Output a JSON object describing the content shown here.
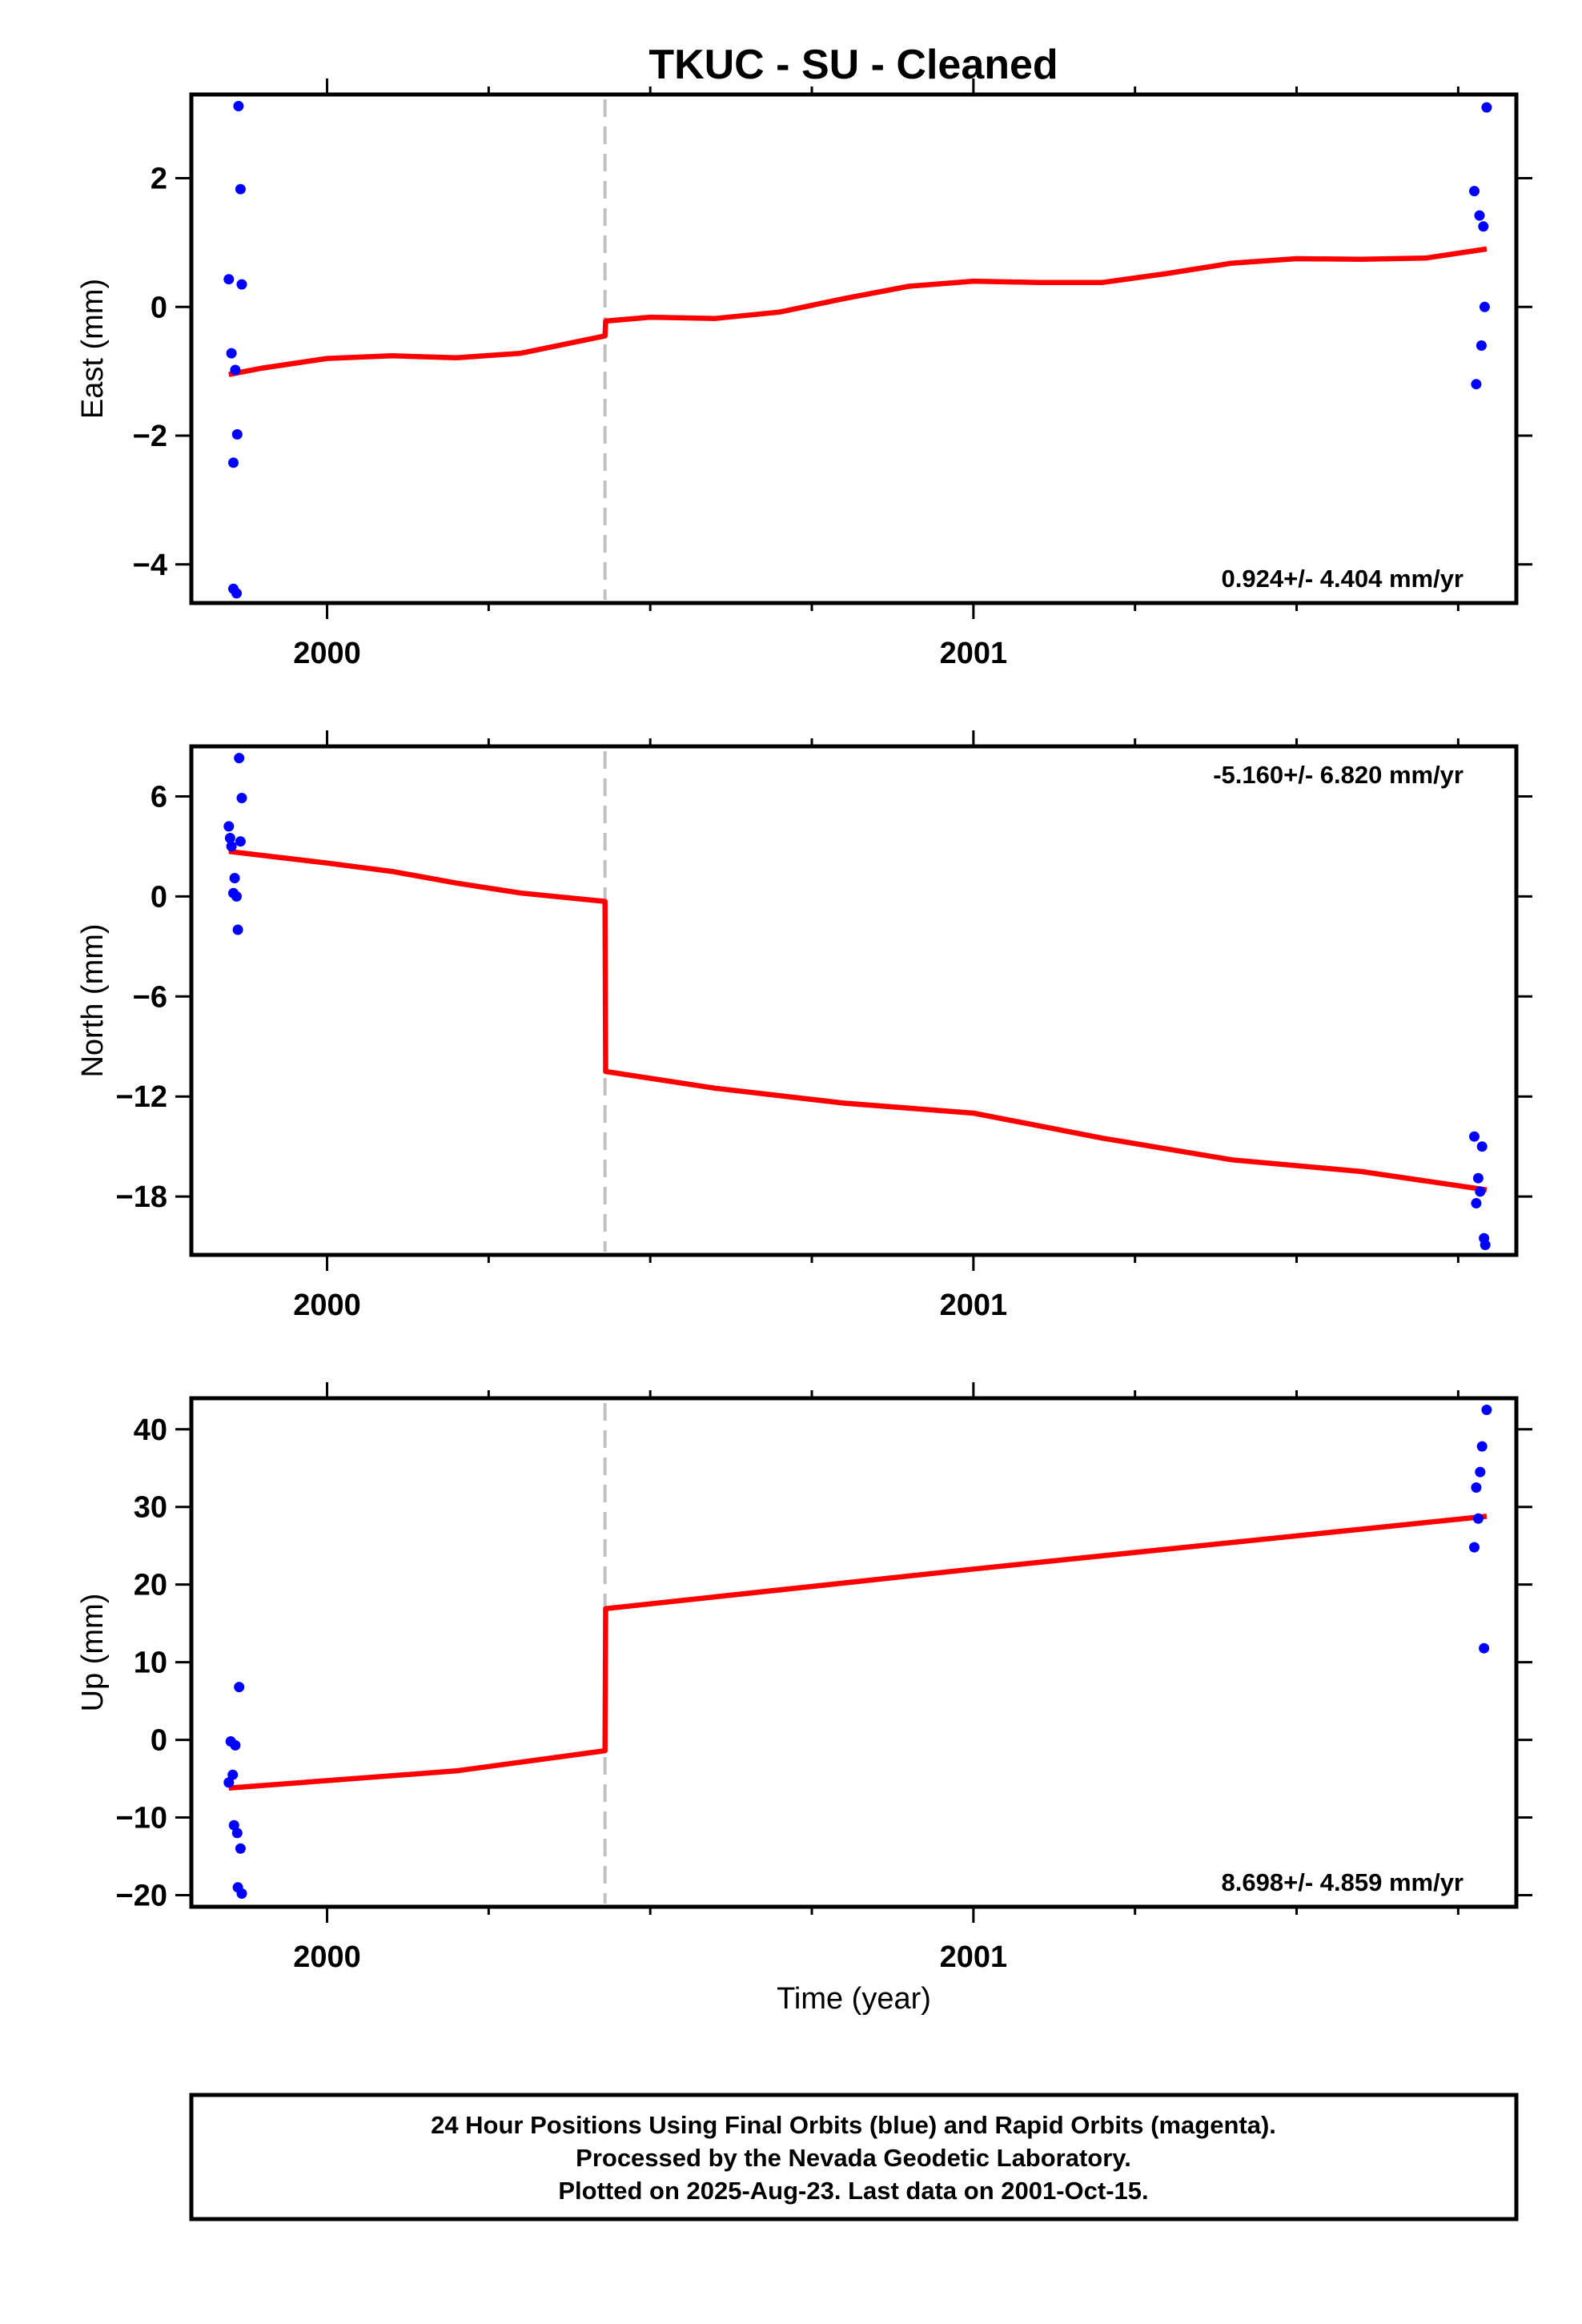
{
  "title": "TKUC  - SU - Cleaned",
  "footer": {
    "lines": [
      "24 Hour Positions Using Final Orbits (blue) and Rapid Orbits (magenta).",
      "Processed by the Nevada Geodetic Laboratory.",
      "Plotted on 2025-Aug-23. Last data on 2001-Oct-15."
    ]
  },
  "colors": {
    "points": "#0000ff",
    "model": "#ff0000",
    "step_line": "#c0c0c0"
  },
  "chart_data": [
    {
      "type": "scatter",
      "panel": "east",
      "ylabel": "East (mm)",
      "xlabel": "",
      "xlim": [
        1999.79,
        2001.84
      ],
      "ylim": [
        -4.6,
        3.3
      ],
      "xticks": [
        2000,
        2001
      ],
      "yticks": [
        -4,
        -2,
        0,
        2
      ],
      "yticklabels": [
        "−4",
        "−2",
        "0",
        "2"
      ],
      "step_epoch": 2000.43,
      "rate_label": "0.924+/- 4.404 mm/yr",
      "rate_position": "bottom-right",
      "points": {
        "x": [
          1999.848,
          1999.852,
          1999.855,
          1999.855,
          1999.858,
          1999.86,
          1999.861,
          1999.863,
          1999.866,
          1999.868,
          2001.775,
          2001.778,
          2001.783,
          2001.786,
          2001.789,
          2001.791,
          2001.794
        ],
        "y": [
          0.43,
          -0.72,
          -2.42,
          -4.38,
          -0.98,
          -4.45,
          -1.98,
          3.12,
          1.83,
          0.35,
          1.8,
          -1.2,
          1.42,
          -0.6,
          1.25,
          0.0,
          3.1
        ]
      },
      "model": {
        "x": [
          1999.848,
          1999.9,
          2000.0,
          2000.1,
          2000.2,
          2000.3,
          2000.43,
          2000.431,
          2000.5,
          2000.6,
          2000.7,
          2000.8,
          2000.9,
          2001.0,
          2001.1,
          2001.2,
          2001.3,
          2001.4,
          2001.5,
          2001.6,
          2001.7,
          2001.794
        ],
        "y": [
          -1.05,
          -0.95,
          -0.8,
          -0.76,
          -0.79,
          -0.72,
          -0.45,
          -0.22,
          -0.16,
          -0.18,
          -0.08,
          0.13,
          0.32,
          0.4,
          0.38,
          0.38,
          0.52,
          0.68,
          0.75,
          0.74,
          0.76,
          0.9
        ]
      }
    },
    {
      "type": "scatter",
      "panel": "north",
      "ylabel": "North (mm)",
      "xlabel": "",
      "xlim": [
        1999.79,
        2001.84
      ],
      "ylim": [
        -21.5,
        9.0
      ],
      "xticks": [
        2000,
        2001
      ],
      "yticks": [
        -18,
        -12,
        -6,
        0,
        6
      ],
      "yticklabels": [
        "−18",
        "−12",
        "−6",
        "0",
        "6"
      ],
      "step_epoch": 2000.43,
      "rate_label": "-5.160+/- 6.820 mm/yr",
      "rate_position": "top-right",
      "points": {
        "x": [
          1999.848,
          1999.85,
          1999.852,
          1999.855,
          1999.857,
          1999.86,
          1999.862,
          1999.864,
          1999.866,
          1999.868,
          2001.775,
          2001.778,
          2001.781,
          2001.784,
          2001.787,
          2001.79,
          2001.792
        ],
        "y": [
          4.2,
          3.5,
          3.0,
          0.2,
          1.1,
          0.0,
          -2.0,
          8.3,
          3.3,
          5.9,
          -14.4,
          -18.4,
          -16.9,
          -17.7,
          -15.0,
          -20.5,
          -20.9
        ]
      },
      "model": {
        "x": [
          1999.848,
          2000.0,
          2000.1,
          2000.2,
          2000.3,
          2000.43,
          2000.431,
          2000.6,
          2000.8,
          2001.0,
          2001.2,
          2001.4,
          2001.6,
          2001.794
        ],
        "y": [
          2.7,
          2.0,
          1.5,
          0.8,
          0.2,
          -0.3,
          -10.5,
          -11.5,
          -12.4,
          -13.0,
          -14.5,
          -15.8,
          -16.5,
          -17.6
        ]
      }
    },
    {
      "type": "scatter",
      "panel": "up",
      "ylabel": "Up (mm)",
      "xlabel": "Time (year)",
      "xlim": [
        1999.79,
        2001.84
      ],
      "ylim": [
        -21.5,
        44.0
      ],
      "xticks": [
        2000,
        2001
      ],
      "yticks": [
        -20,
        -10,
        0,
        10,
        20,
        30,
        40
      ],
      "yticklabels": [
        "−20",
        "−10",
        "0",
        "10",
        "20",
        "30",
        "40"
      ],
      "step_epoch": 2000.43,
      "rate_label": "8.698+/- 4.859 mm/yr",
      "rate_position": "bottom-right",
      "points": {
        "x": [
          1999.848,
          1999.851,
          1999.854,
          1999.856,
          1999.858,
          1999.861,
          1999.862,
          1999.864,
          1999.866,
          1999.868,
          2001.775,
          2001.778,
          2001.781,
          2001.784,
          2001.787,
          2001.79,
          2001.794
        ],
        "y": [
          -5.5,
          -0.2,
          -4.5,
          -11.0,
          -0.7,
          -12.0,
          -19.0,
          6.8,
          -14.0,
          -19.8,
          24.8,
          32.5,
          28.5,
          34.5,
          37.8,
          11.8,
          42.5
        ]
      },
      "model": {
        "x": [
          1999.848,
          2000.2,
          2000.43,
          2000.431,
          2001.0,
          2001.794
        ],
        "y": [
          -6.2,
          -4.0,
          -1.4,
          16.9,
          22.0,
          28.8
        ]
      }
    }
  ]
}
